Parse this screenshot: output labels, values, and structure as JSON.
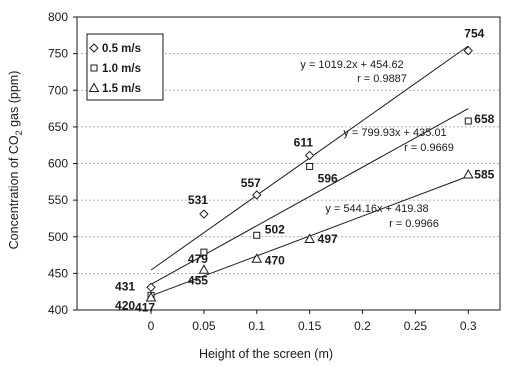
{
  "chart_data": {
    "type": "scatter",
    "xlabel": "Height of the screen (m)",
    "ylabel": "Concentration of CO2 gas (ppm)",
    "ylabel_parts": [
      "Concentration of CO",
      "2",
      " gas (ppm)"
    ],
    "xlim": [
      -0.07,
      0.33
    ],
    "ylim": [
      400,
      800
    ],
    "x_ticks": [
      0,
      0.05,
      0.1,
      0.15,
      0.2,
      0.25,
      0.3
    ],
    "x_tick_labels": [
      "0",
      "0.05",
      "0.1",
      "0.15",
      "0.2",
      "0.25",
      "0.3"
    ],
    "y_ticks": [
      400,
      450,
      500,
      550,
      600,
      650,
      700,
      750,
      800
    ],
    "y_tick_labels": [
      "400",
      "450",
      "500",
      "550",
      "600",
      "650",
      "700",
      "750",
      "800"
    ],
    "grid": true,
    "legend_position": "top-left",
    "series": [
      {
        "name": "0.5 m/s",
        "marker": "diamond",
        "x": [
          0,
          0.05,
          0.1,
          0.15,
          0.3
        ],
        "y": [
          431,
          531,
          557,
          611,
          754
        ],
        "labels": [
          "431",
          "531",
          "557",
          "611",
          "754"
        ],
        "fit": {
          "slope": 1019.2,
          "intercept": 454.62,
          "equation": "y = 1019.2x + 454.62",
          "r": "r = 0.9887"
        }
      },
      {
        "name": "1.0 m/s",
        "marker": "square",
        "x": [
          0,
          0.05,
          0.1,
          0.15,
          0.3
        ],
        "y": [
          420,
          479,
          502,
          596,
          658
        ],
        "labels": [
          "420",
          "479",
          "502",
          "596",
          "658"
        ],
        "fit": {
          "slope": 799.93,
          "intercept": 435.01,
          "equation": "y = 799.93x + 435.01",
          "r": "r = 0.9669"
        }
      },
      {
        "name": "1.5 m/s",
        "marker": "triangle",
        "x": [
          0,
          0.05,
          0.1,
          0.15,
          0.3
        ],
        "y": [
          417,
          455,
          470,
          497,
          585
        ],
        "labels": [
          "417",
          "455",
          "470",
          "497",
          "585"
        ],
        "fit": {
          "slope": 544.16,
          "intercept": 419.38,
          "equation": "y = 544.16x + 419.38",
          "r": "r = 0.9966"
        }
      }
    ]
  },
  "colors": {
    "ink": "#1a1a1a",
    "grid": "#9a9a9a",
    "background": "#ffffff"
  }
}
